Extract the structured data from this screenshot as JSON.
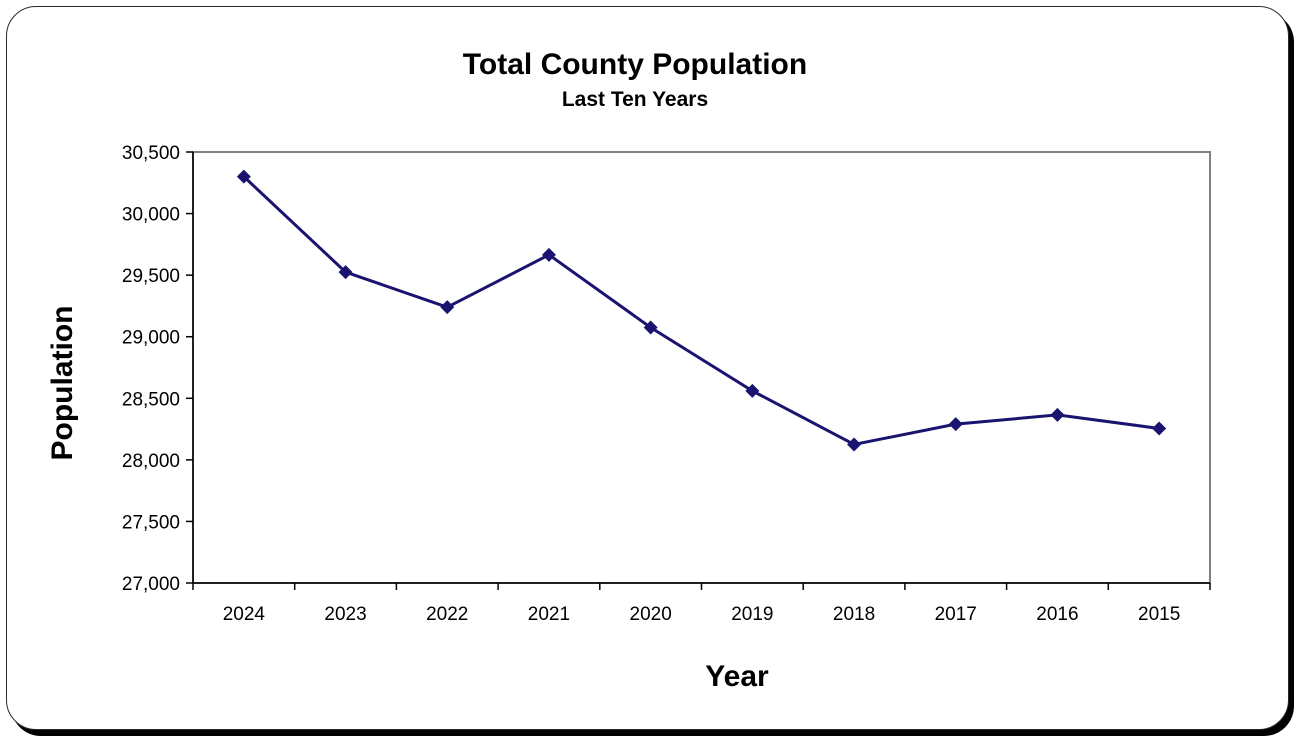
{
  "chart_data": {
    "type": "line",
    "title": "Total County Population",
    "subtitle": "Last Ten Years",
    "xlabel": "Year",
    "ylabel": "Population",
    "categories": [
      "2024",
      "2023",
      "2022",
      "2021",
      "2020",
      "2019",
      "2018",
      "2017",
      "2016",
      "2015"
    ],
    "series": [
      {
        "values": [
          30300,
          29525,
          29240,
          29665,
          29075,
          28560,
          28125,
          28290,
          28365,
          28255
        ]
      }
    ],
    "ylim": [
      27000,
      30500
    ],
    "yticks": [
      27000,
      27500,
      28000,
      28500,
      29000,
      29500,
      30000,
      30500
    ],
    "ytick_labels": [
      "27,000",
      "27,500",
      "28,000",
      "28,500",
      "29,000",
      "29,500",
      "30,000",
      "30,500"
    ],
    "grid": false,
    "legend": "none",
    "colors": {
      "line": "#1a1470",
      "plot_border": "#808080",
      "axis": "#000000"
    },
    "marker": "diamond"
  }
}
